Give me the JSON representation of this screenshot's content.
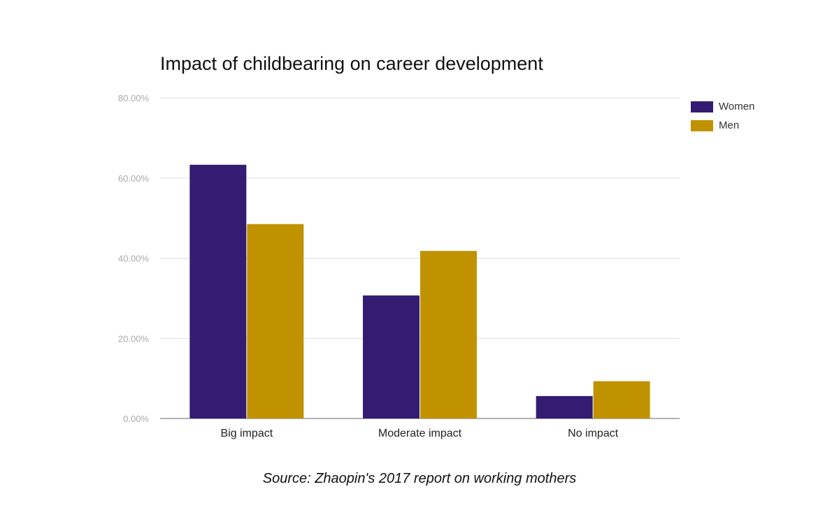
{
  "chart_data": {
    "type": "bar",
    "title": "Impact of childbearing on career development",
    "categories": [
      "Big impact",
      "Moderate impact",
      "No impact"
    ],
    "series": [
      {
        "name": "Women",
        "color": "#341c73",
        "values": [
          63.3,
          30.7,
          5.6
        ]
      },
      {
        "name": "Men",
        "color": "#c09200",
        "values": [
          48.5,
          41.8,
          9.3
        ]
      }
    ],
    "ylim": [
      0,
      80
    ],
    "yticks": [
      0,
      20,
      40,
      60,
      80
    ],
    "ytick_labels": [
      "0.00%",
      "20.00%",
      "40.00%",
      "60.00%",
      "80.00%"
    ],
    "xlabel": "",
    "ylabel": "",
    "grid": true,
    "legend_position": "right"
  },
  "footer": {
    "source": "Source: Zhaopin's 2017 report on working mothers"
  }
}
